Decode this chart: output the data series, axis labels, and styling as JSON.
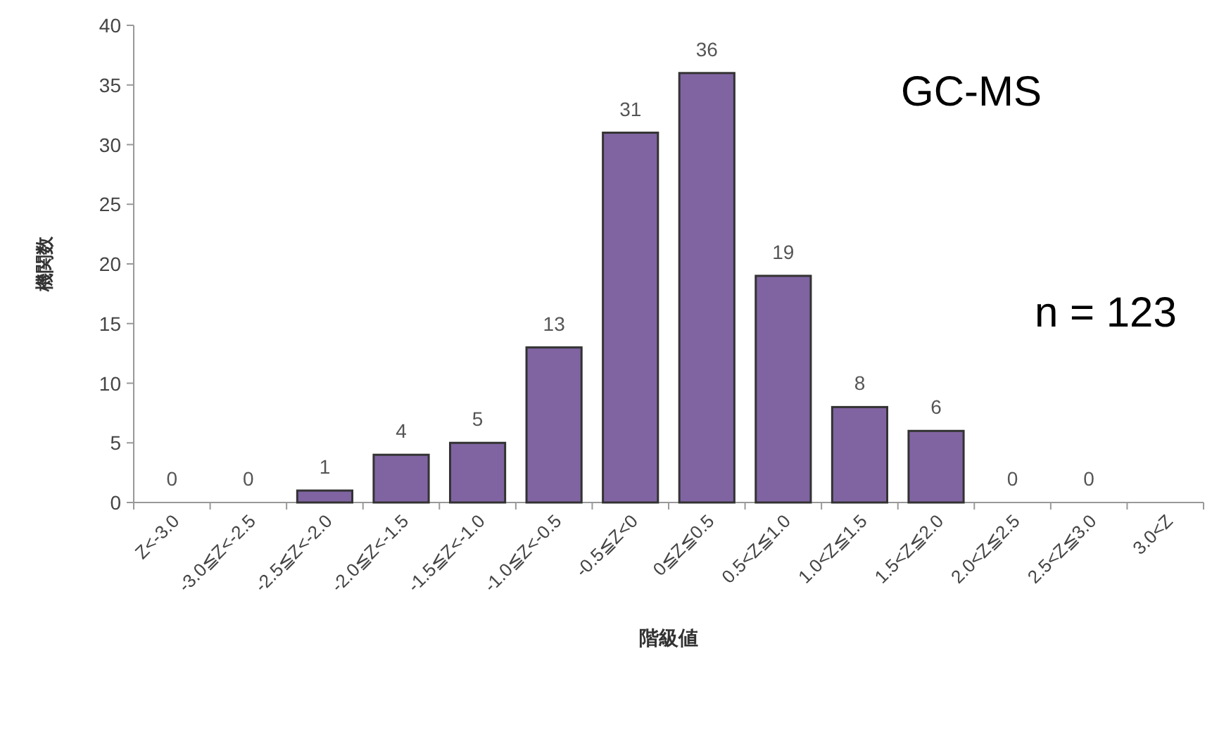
{
  "chart_data": {
    "type": "bar",
    "xlabel": "階級値",
    "ylabel": "機関数",
    "categories": [
      "Z<-3.0",
      "-3.0≦Z<-2.5",
      "-2.5≦Z<-2.0",
      "-2.0≦Z<-1.5",
      "-1.5≦Z<-1.0",
      "-1.0≦Z<-0.5",
      "-0.5≦Z<0",
      "0≦Z≦0.5",
      "0.5<Z≦1.0",
      "1.0<Z≦1.5",
      "1.5<Z≦2.0",
      "2.0<Z≦2.5",
      "2.5<Z≦3.0",
      "3.0<Z"
    ],
    "values": [
      0,
      0,
      1,
      4,
      5,
      13,
      31,
      36,
      19,
      8,
      6,
      0,
      0,
      null
    ],
    "color": "#8064a2",
    "data_labels": true,
    "ylim": [
      0,
      40
    ],
    "yticks": [
      0,
      5,
      10,
      15,
      20,
      25,
      30,
      35,
      40
    ],
    "grid": false,
    "annotations": [
      "GC-MS",
      "n = 123"
    ]
  }
}
